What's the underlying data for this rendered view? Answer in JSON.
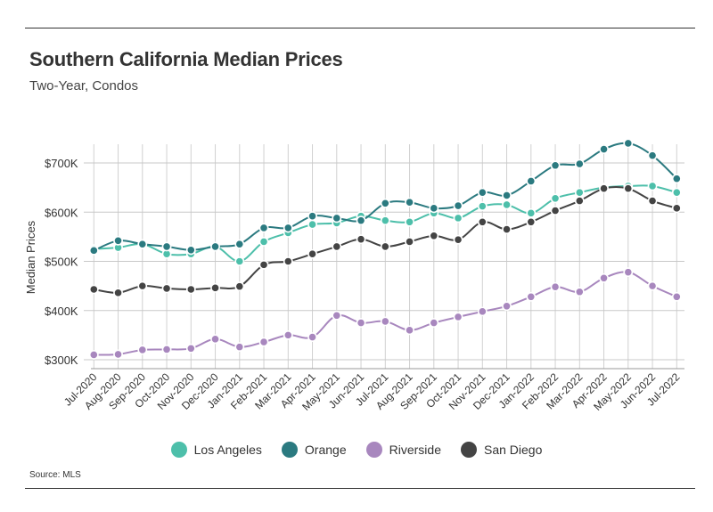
{
  "header": {
    "title": "Southern California Median Prices",
    "subtitle": "Two-Year, Condos"
  },
  "footer": {
    "source": "Source:  MLS"
  },
  "chart_data": {
    "type": "line",
    "title": "Southern California Median Prices",
    "subtitle": "Two-Year, Condos",
    "xlabel": "",
    "ylabel": "Median Prices",
    "ylim": [
      300000,
      740000
    ],
    "yticks": [
      300000,
      400000,
      500000,
      600000,
      700000
    ],
    "ytick_labels": [
      "$300K",
      "$400K",
      "$500K",
      "$600K",
      "$700K"
    ],
    "grid": true,
    "legend_position": "bottom",
    "categories": [
      "Jul-2020",
      "Aug-2020",
      "Sep-2020",
      "Oct-2020",
      "Nov-2020",
      "Dec-2020",
      "Jan-2021",
      "Feb-2021",
      "Mar-2021",
      "Apr-2021",
      "May-2021",
      "Jun-2021",
      "Jul-2021",
      "Aug-2021",
      "Sep-2021",
      "Oct-2021",
      "Nov-2021",
      "Dec-2021",
      "Jan-2022",
      "Feb-2022",
      "Mar-2022",
      "Apr-2022",
      "May-2022",
      "Jun-2022",
      "Jul-2022"
    ],
    "series": [
      {
        "name": "Los Angeles",
        "color": "#4dbfaa",
        "values": [
          525000,
          528000,
          535000,
          515000,
          515000,
          530000,
          500000,
          540000,
          558000,
          575000,
          578000,
          592000,
          583000,
          580000,
          598000,
          588000,
          612000,
          615000,
          598000,
          628000,
          640000,
          650000,
          653000,
          653000,
          640000
        ]
      },
      {
        "name": "Orange",
        "color": "#2b7a80",
        "values": [
          522000,
          542000,
          535000,
          530000,
          523000,
          530000,
          535000,
          568000,
          568000,
          592000,
          588000,
          583000,
          618000,
          620000,
          608000,
          613000,
          640000,
          634000,
          663000,
          695000,
          698000,
          728000,
          740000,
          715000,
          668000
        ]
      },
      {
        "name": "Riverside",
        "color": "#a887be",
        "values": [
          310000,
          311000,
          320000,
          321000,
          323000,
          342000,
          326000,
          336000,
          350000,
          346000,
          390000,
          375000,
          378000,
          360000,
          375000,
          387000,
          398000,
          409000,
          428000,
          448000,
          438000,
          466000,
          478000,
          450000,
          428000
        ]
      },
      {
        "name": "San Diego",
        "color": "#444444",
        "values": [
          443000,
          436000,
          450000,
          445000,
          443000,
          446000,
          449000,
          493000,
          500000,
          515000,
          530000,
          545000,
          530000,
          540000,
          552000,
          544000,
          580000,
          565000,
          580000,
          603000,
          623000,
          648000,
          648000,
          623000,
          608000
        ]
      }
    ]
  }
}
